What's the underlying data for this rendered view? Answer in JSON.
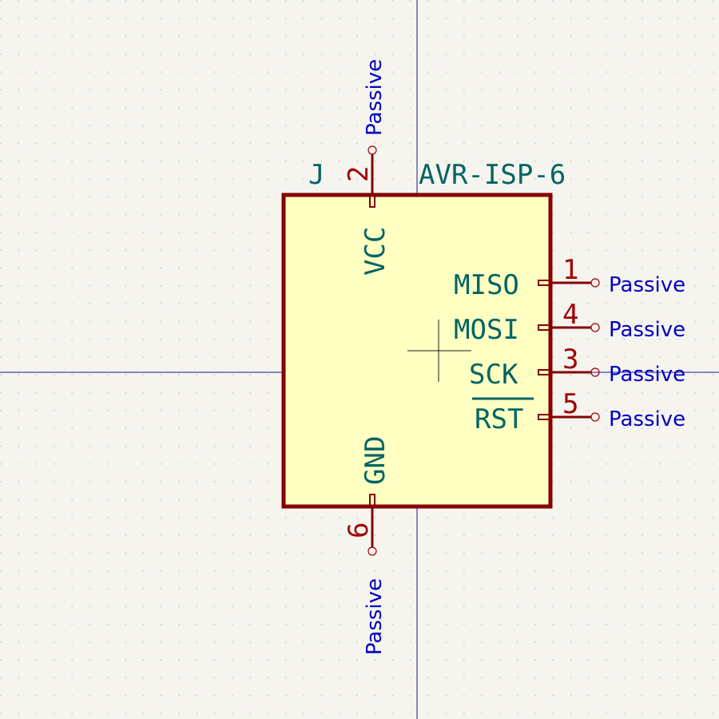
{
  "symbol": {
    "reference": "J",
    "value": "AVR-ISP-6"
  },
  "pins": [
    {
      "number": "2",
      "name": "VCC",
      "type": "Passive"
    },
    {
      "number": "1",
      "name": "MISO",
      "type": "Passive"
    },
    {
      "number": "4",
      "name": "MOSI",
      "type": "Passive"
    },
    {
      "number": "3",
      "name": "SCK",
      "type": "Passive"
    },
    {
      "number": "5",
      "name": "RST",
      "type": "Passive",
      "inverted": true
    },
    {
      "number": "6",
      "name": "GND",
      "type": "Passive"
    }
  ],
  "colors": {
    "background": "#f5f4ef",
    "grid_dot": "#c8c8c0",
    "axis": "#1a1a8c",
    "body_fill": "#ffffc2",
    "body_stroke": "#840000",
    "pin_line": "#840000",
    "pin_number": "#a00000",
    "pin_name": "#006464",
    "pin_type": "#0000c0",
    "field_text": "#006464"
  }
}
